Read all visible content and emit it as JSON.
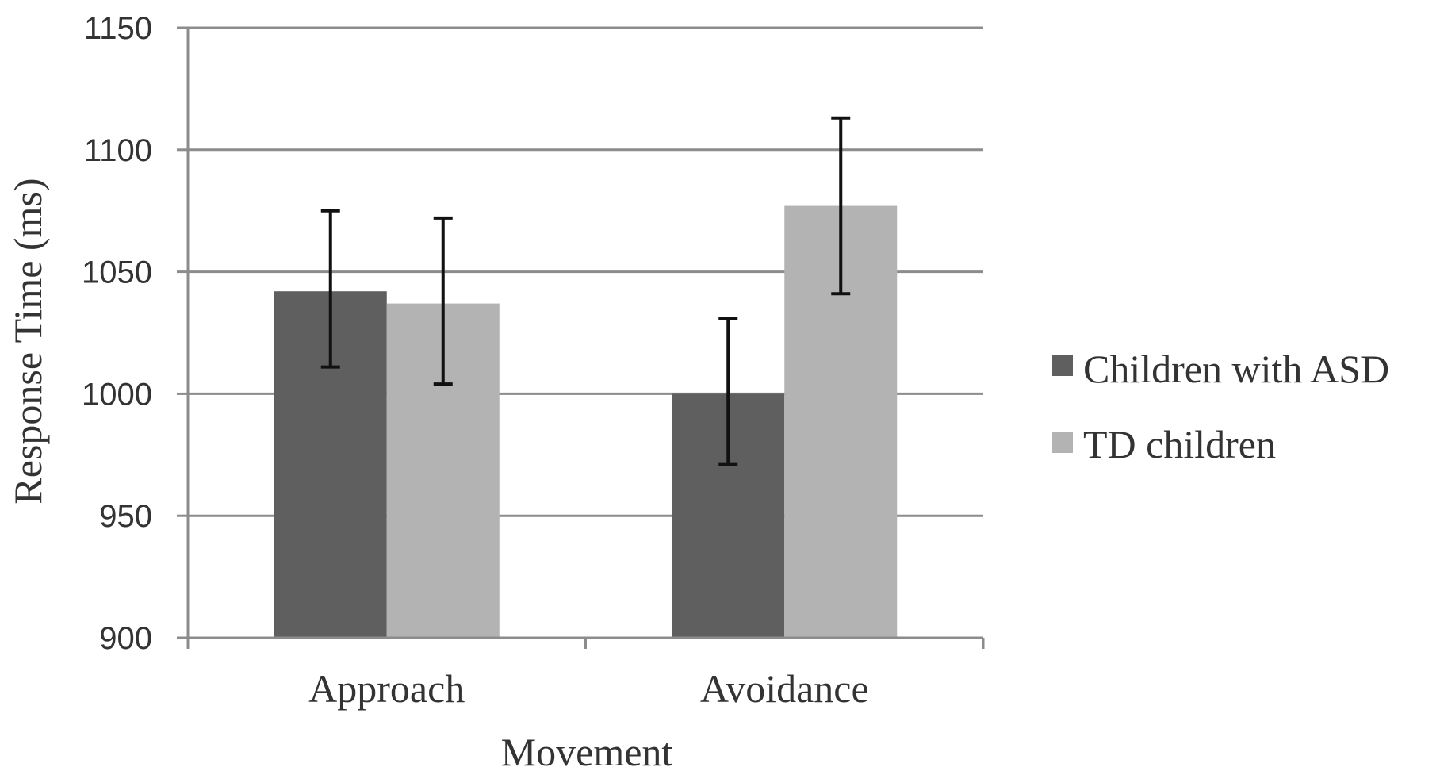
{
  "chart_data": {
    "type": "bar",
    "title": "",
    "xlabel": "Movement",
    "ylabel": "Response Time (ms)",
    "ylim": [
      900,
      1150
    ],
    "yticks": [
      900,
      950,
      1000,
      1050,
      1100,
      1150
    ],
    "categories": [
      "Approach",
      "Avoidance"
    ],
    "series": [
      {
        "name": "Children with ASD",
        "color": "#5f5f5f",
        "values": [
          1042,
          1000
        ],
        "error_low": [
          1011,
          971
        ],
        "error_high": [
          1075,
          1031
        ]
      },
      {
        "name": "TD children",
        "color": "#b3b3b3",
        "values": [
          1037,
          1077
        ],
        "error_low": [
          1004,
          1041
        ],
        "error_high": [
          1072,
          1113
        ]
      }
    ],
    "grid": true,
    "error_bars": true,
    "legend_position": "right",
    "colors": {
      "gridline": "#8c8c8c",
      "axis": "#8c8c8c",
      "error_bar": "#111111"
    }
  }
}
